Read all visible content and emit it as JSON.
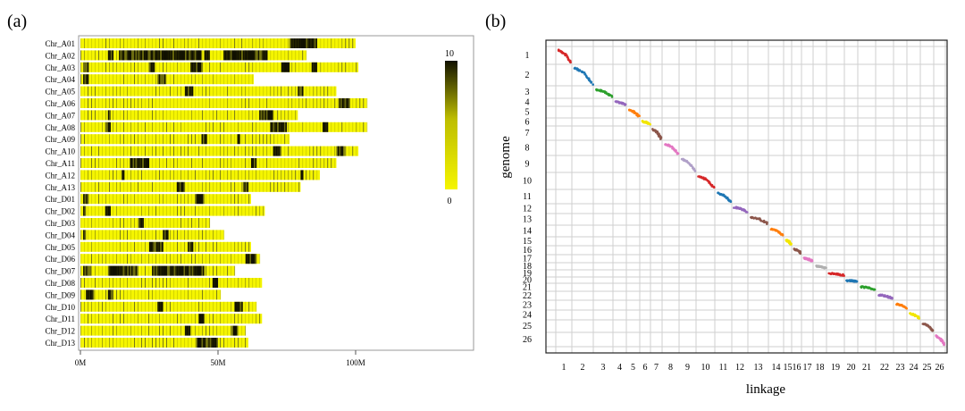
{
  "panel_a": {
    "label": "(a)",
    "chart_data": {
      "type": "heatmap",
      "chromosomes": [
        "Chr_A01",
        "Chr_A02",
        "Chr_A03",
        "Chr_A04",
        "Chr_A05",
        "Chr_A06",
        "Chr_A07",
        "Chr_A08",
        "Chr_A09",
        "Chr_A10",
        "Chr_A11",
        "Chr_A12",
        "Chr_A13",
        "Chr_D01",
        "Chr_D02",
        "Chr_D03",
        "Chr_D04",
        "Chr_D05",
        "Chr_D06",
        "Chr_D07",
        "Chr_D08",
        "Chr_D09",
        "Chr_D10",
        "Chr_D11",
        "Chr_D12",
        "Chr_D13"
      ],
      "lengths_mb": [
        100,
        82,
        101,
        63,
        93,
        104,
        79,
        104,
        76,
        101,
        93,
        87,
        80,
        62,
        67,
        47,
        52,
        62,
        65,
        56,
        66,
        51,
        64,
        66,
        60,
        61
      ],
      "dark_regions_mb": [
        [
          [
            76,
            86
          ]
        ],
        [
          [
            10,
            12
          ],
          [
            14,
            44
          ],
          [
            45,
            47
          ],
          [
            52,
            68
          ]
        ],
        [
          [
            1,
            3
          ],
          [
            25,
            27
          ],
          [
            40,
            44
          ],
          [
            73,
            76
          ],
          [
            84,
            86
          ]
        ],
        [
          [
            1,
            3
          ],
          [
            28,
            31
          ]
        ],
        [
          [
            38,
            41
          ],
          [
            79,
            81
          ]
        ],
        [
          [
            94,
            98
          ]
        ],
        [
          [
            10,
            11
          ],
          [
            65,
            70
          ]
        ],
        [
          [
            9,
            11
          ],
          [
            69,
            75
          ],
          [
            88,
            90
          ]
        ],
        [
          [
            44,
            46
          ],
          [
            57,
            58
          ]
        ],
        [
          [
            70,
            73
          ],
          [
            93,
            96
          ]
        ],
        [
          [
            18,
            25
          ],
          [
            62,
            64
          ]
        ],
        [
          [
            15,
            16
          ],
          [
            80,
            81
          ]
        ],
        [
          [
            35,
            38
          ],
          [
            59,
            61
          ]
        ],
        [
          [
            1,
            3
          ],
          [
            42,
            45
          ]
        ],
        [
          [
            1,
            2
          ],
          [
            9,
            11
          ]
        ],
        [
          [
            21,
            23
          ]
        ],
        [
          [
            1,
            2
          ],
          [
            30,
            32
          ]
        ],
        [
          [
            25,
            30
          ],
          [
            39,
            41
          ]
        ],
        [
          [
            60,
            64
          ]
        ],
        [
          [
            1,
            4
          ],
          [
            10,
            21
          ],
          [
            26,
            45
          ]
        ],
        [
          [
            48,
            50
          ]
        ],
        [
          [
            2,
            5
          ],
          [
            10,
            12
          ]
        ],
        [
          [
            28,
            30
          ],
          [
            56,
            59
          ]
        ],
        [
          [
            43,
            45
          ]
        ],
        [
          [
            38,
            40
          ],
          [
            55,
            57
          ]
        ],
        [
          [
            42,
            50
          ]
        ]
      ],
      "x_ticks": [
        "0M",
        "50M",
        "100M"
      ],
      "x_tick_values": [
        0,
        50,
        100
      ],
      "xlim": [
        0,
        140
      ],
      "legend_max": "10",
      "legend_min": "0",
      "colors": {
        "low": "#f5f500",
        "high": "#1a1a00"
      }
    }
  },
  "panel_b": {
    "label": "(b)",
    "chart_data": {
      "type": "scatter",
      "xlabel": "linkage",
      "ylabel": "genome",
      "x_ticks": [
        "1",
        "2",
        "3",
        "4",
        "5",
        "6",
        "7",
        "8",
        "9",
        "10",
        "11",
        "12",
        "13",
        "14",
        "15",
        "16",
        "17",
        "18",
        "19",
        "20",
        "21",
        "22",
        "23",
        "24",
        "25",
        "26"
      ],
      "y_ticks": [
        "1",
        "2",
        "3",
        "4",
        "5",
        "6",
        "7",
        "8",
        "9",
        "10",
        "11",
        "12",
        "13",
        "14",
        "15",
        "16",
        "17",
        "18",
        "19",
        "20",
        "21",
        "22",
        "23",
        "24",
        "25",
        "26"
      ],
      "group_colors": [
        "#d62728",
        "#1f77b4",
        "#2ca02c",
        "#9467bd",
        "#ff7f0e",
        "#f2e600",
        "#8c564b",
        "#e377c2",
        "#b0a0c8",
        "#d62728",
        "#1f77b4",
        "#9467bd",
        "#8c564b",
        "#ff7f0e",
        "#f2e600",
        "#8c564b",
        "#e377c2",
        "#b0b0b0",
        "#d62728",
        "#1f77b4",
        "#2ca02c",
        "#9467bd",
        "#ff7f0e",
        "#f2e600",
        "#8c564b",
        "#e377c2"
      ]
    }
  }
}
